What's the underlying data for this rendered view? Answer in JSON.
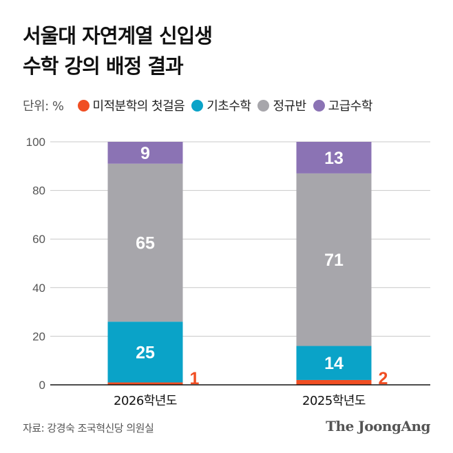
{
  "title": [
    "서울대 자연계열 신입생",
    "수학 강의 배정 결과"
  ],
  "legend": {
    "unit": "단위: %",
    "items": [
      {
        "label": "미적분학의 첫걸음",
        "color": "#f04e23"
      },
      {
        "label": "기초수학",
        "color": "#0aa3c8"
      },
      {
        "label": "정규반",
        "color": "#a7a6ab"
      },
      {
        "label": "고급수학",
        "color": "#8b73b4"
      }
    ]
  },
  "chart_data": {
    "type": "bar",
    "stacked": true,
    "categories": [
      "2026학년도",
      "2025학년도"
    ],
    "series": [
      {
        "name": "미적분학의 첫걸음",
        "color": "#f04e23",
        "values": [
          1,
          2
        ]
      },
      {
        "name": "기초수학",
        "color": "#0aa3c8",
        "values": [
          25,
          14
        ]
      },
      {
        "name": "정규반",
        "color": "#a7a6ab",
        "values": [
          65,
          71
        ]
      },
      {
        "name": "고급수학",
        "color": "#8b73b4",
        "values": [
          9,
          13
        ]
      }
    ],
    "ylim": [
      0,
      100
    ],
    "yticks": [
      "0",
      "20",
      "40",
      "60",
      "80",
      "100"
    ],
    "grid": true,
    "legend_position": "top"
  },
  "source": "자료: 강경숙 조국혁신당 의원실",
  "logo": "The JoongAng"
}
